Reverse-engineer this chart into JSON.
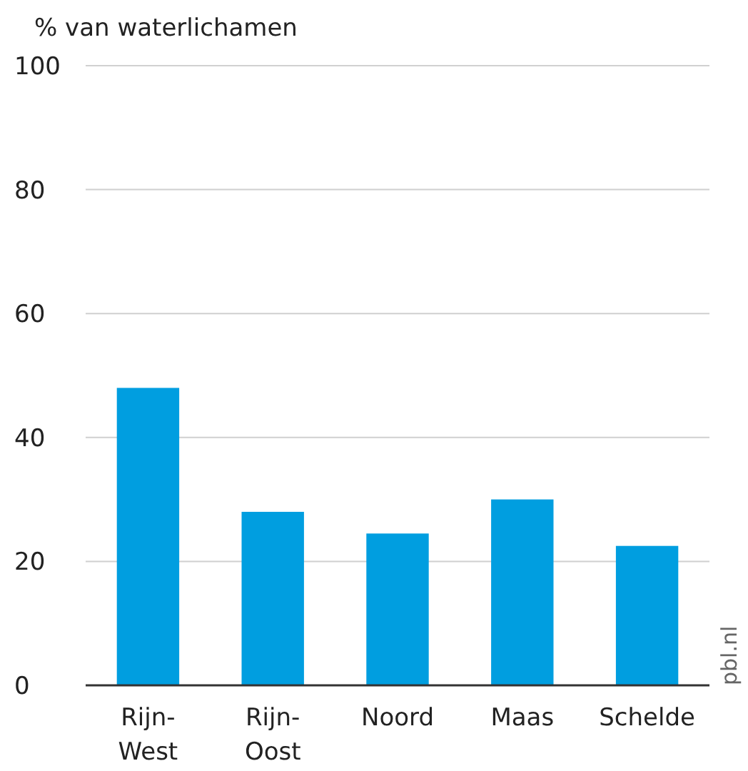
{
  "chart_data": {
    "type": "bar",
    "ylabel": "% van waterlichamen",
    "categories": [
      "Rijn-West",
      "Rijn-Oost",
      "Noord",
      "Maas",
      "Schelde"
    ],
    "values": [
      48,
      28,
      24.5,
      30,
      22.5
    ],
    "color": "#009ee0",
    "ylim": [
      0,
      100
    ],
    "yticks": [
      0,
      20,
      40,
      60,
      80,
      100
    ],
    "grid": "y",
    "annotations": [
      "pbl.nl"
    ]
  }
}
